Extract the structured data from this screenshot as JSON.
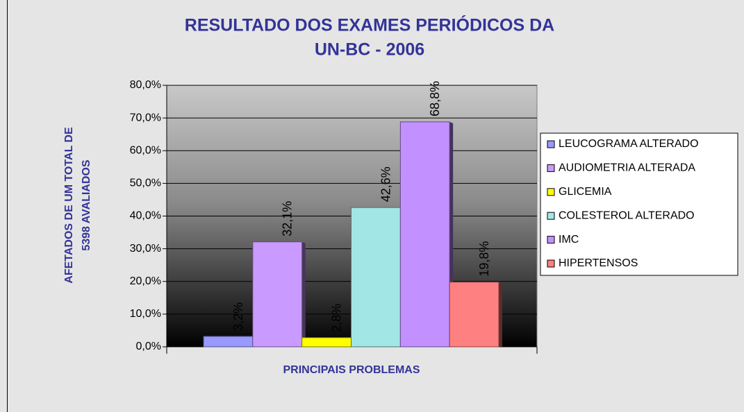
{
  "chart_data": {
    "type": "bar",
    "title": [
      "RESULTADO DOS EXAMES PERIÓDICOS DA",
      "UN-BC - 2006"
    ],
    "x_label": "PRINCIPAIS PROBLEMAS",
    "y_label": [
      "AFETADOS DE UM TOTAL DE",
      "5398  AVALIADOS"
    ],
    "series": [
      {
        "name": "LEUCOGRAMA ALTERADO",
        "color": "#9999ff",
        "values": [
          3.2
        ],
        "value_labels": [
          "3,2%"
        ]
      },
      {
        "name": "AUDIOMETRIA ALTERADA",
        "color": "#c99aff",
        "values": [
          32.1
        ],
        "value_labels": [
          "32,1%"
        ]
      },
      {
        "name": "GLICEMIA",
        "color": "#ffff00",
        "values": [
          2.8
        ],
        "value_labels": [
          "2,8%"
        ]
      },
      {
        "name": "COLESTEROL ALTERADO",
        "color": "#a3e6e6",
        "values": [
          42.6
        ],
        "value_labels": [
          "42,6%"
        ]
      },
      {
        "name": "IMC",
        "color": "#c391ff",
        "values": [
          68.8
        ],
        "value_labels": [
          "68,8%"
        ]
      },
      {
        "name": "HIPERTENSOS",
        "color": "#ff8080",
        "values": [
          19.8
        ],
        "value_labels": [
          "19,8%"
        ]
      }
    ],
    "ylim": [
      0,
      80
    ],
    "yticks": [
      {
        "value": 0,
        "label": "0,0%"
      },
      {
        "value": 10,
        "label": "10,0%"
      },
      {
        "value": 20,
        "label": "20,0%"
      },
      {
        "value": 30,
        "label": "30,0%"
      },
      {
        "value": 40,
        "label": "40,0%"
      },
      {
        "value": 50,
        "label": "50,0%"
      },
      {
        "value": 60,
        "label": "60,0%"
      },
      {
        "value": 70,
        "label": "70,0%"
      },
      {
        "value": 80,
        "label": "80,0%"
      }
    ],
    "grid": true,
    "legend": "right"
  }
}
